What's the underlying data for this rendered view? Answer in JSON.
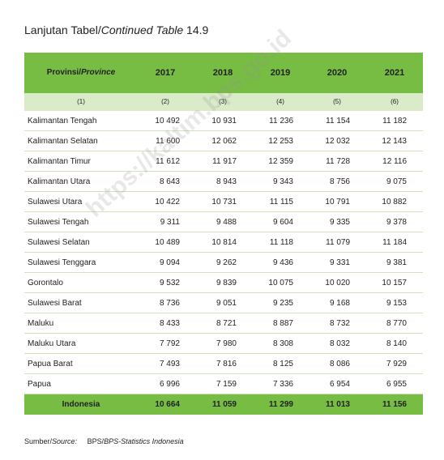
{
  "title": {
    "prefix": "Lanjutan Tabel/",
    "italic": "Continued Table",
    "suffix": " 14.9"
  },
  "table": {
    "header": {
      "province": {
        "prefix": "Provinsi/",
        "italic": "Province"
      },
      "years": [
        "2017",
        "2018",
        "2019",
        "2020",
        "2021"
      ]
    },
    "column_numbers": [
      "(1)",
      "(2)",
      "(3)",
      "(4)",
      "(5)",
      "(6)"
    ],
    "rows": [
      [
        "Kalimantan Tengah",
        "10 492",
        "10 931",
        "11 236",
        "11 154",
        "11 182"
      ],
      [
        "Kalimantan Selatan",
        "11 600",
        "12 062",
        "12 253",
        "12 032",
        "12 143"
      ],
      [
        "Kalimantan Timur",
        "11 612",
        "11 917",
        "12 359",
        "11 728",
        "12 116"
      ],
      [
        "Kalimantan Utara",
        "8 643",
        "8 943",
        "9 343",
        "8 756",
        "9 075"
      ],
      [
        "Sulawesi Utara",
        "10 422",
        "10 731",
        "11 115",
        "10 791",
        "10 882"
      ],
      [
        "Sulawesi Tengah",
        "9 311",
        "9 488",
        "9 604",
        "9 335",
        "9 378"
      ],
      [
        "Sulawesi Selatan",
        "10 489",
        "10 814",
        "11 118",
        "11 079",
        "11 184"
      ],
      [
        "Sulawesi Tenggara",
        "9 094",
        "9 262",
        "9 436",
        "9 331",
        "9 381"
      ],
      [
        "Gorontalo",
        "9 532",
        "9 839",
        "10 075",
        "10 020",
        "10 157"
      ],
      [
        "Sulawesi Barat",
        "8 736",
        "9 051",
        "9 235",
        "9 168",
        "9 153"
      ],
      [
        "Maluku",
        "8 433",
        "8 721",
        "8 887",
        "8 732",
        "8 770"
      ],
      [
        "Maluku Utara",
        "7 792",
        "7 980",
        "8 308",
        "8 032",
        "8 140"
      ],
      [
        "Papua Barat",
        "7 493",
        "7 816",
        "8 125",
        "8 086",
        "7 929"
      ],
      [
        "Papua",
        "6 996",
        "7 159",
        "7 336",
        "6 954",
        "6 955"
      ]
    ],
    "total": [
      "Indonesia",
      "10 664",
      "11 059",
      "11 299",
      "11 013",
      "11 156"
    ]
  },
  "source": {
    "label_prefix": "Sumber/",
    "label_italic": "Source:",
    "text_prefix": "BPS/",
    "text_italic": "BPS-Statistics Indonesia"
  },
  "watermark": "https://kaltim.bps.go.id"
}
